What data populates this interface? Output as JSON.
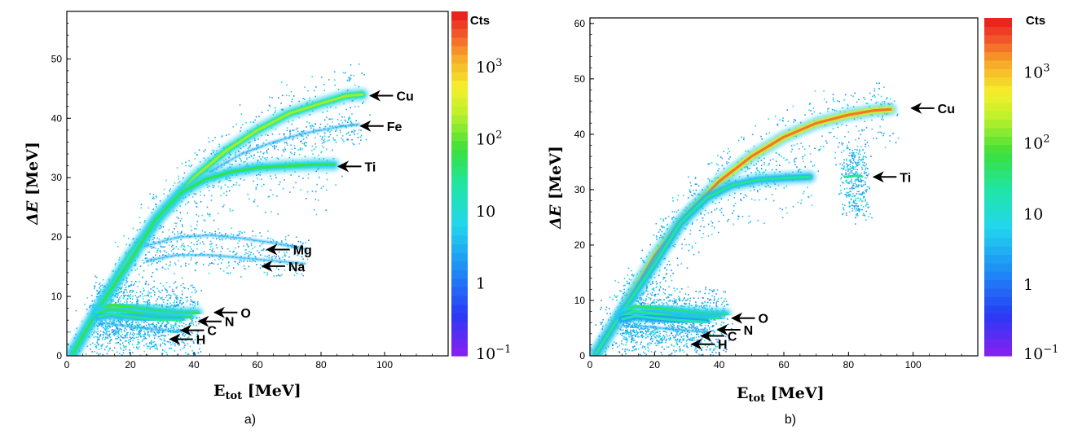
{
  "chart_data": [
    {
      "type": "heatmap",
      "panel_label": "a)",
      "xlabel_main": "E",
      "xlabel_sub": "tot",
      "xlabel_unit": " [MeV]",
      "ylabel_main": "ΔE",
      "ylabel_unit": " [MeV]",
      "xlim": [
        0,
        120
      ],
      "ylim": [
        0,
        58
      ],
      "xticks": [
        0,
        20,
        40,
        60,
        80,
        100
      ],
      "yticks": [
        0,
        10,
        20,
        30,
        40,
        50
      ],
      "colorbar": {
        "title": "Cts",
        "scale": "log",
        "range": [
          0.1,
          6000
        ],
        "ticks": [
          {
            "base": "10",
            "exp": "3",
            "value": 1000
          },
          {
            "base": "10",
            "exp": "2",
            "value": 100
          },
          {
            "base": "10",
            "exp": "",
            "value": 10
          },
          {
            "base": "1",
            "exp": "",
            "value": 1
          },
          {
            "base": "10",
            "exp": "−1",
            "value": 0.1
          }
        ]
      },
      "bands": [
        {
          "name": "Cu",
          "points": [
            [
              2,
              0.5
            ],
            [
              10,
              8
            ],
            [
              20,
              17
            ],
            [
              30,
              24
            ],
            [
              40,
              30
            ],
            [
              50,
              34.5
            ],
            [
              60,
              38
            ],
            [
              70,
              40.8
            ],
            [
              80,
              42.5
            ],
            [
              88,
              43.8
            ],
            [
              93,
              44
            ]
          ],
          "intensity": 0.62
        },
        {
          "name": "Ti",
          "points": [
            [
              2,
              0.5
            ],
            [
              10,
              8
            ],
            [
              20,
              16
            ],
            [
              28,
              23
            ],
            [
              36,
              27.5
            ],
            [
              44,
              29.8
            ],
            [
              52,
              31
            ],
            [
              60,
              31.7
            ],
            [
              70,
              32
            ],
            [
              78,
              32.2
            ],
            [
              84,
              32.2
            ]
          ],
          "intensity": 0.52
        },
        {
          "name": "Fe",
          "points": [
            [
              45,
              31
            ],
            [
              55,
              34
            ],
            [
              65,
              36
            ],
            [
              75,
              37.5
            ],
            [
              85,
              38.5
            ],
            [
              92,
              39
            ]
          ],
          "intensity": 0.15
        },
        {
          "name": "Mg",
          "points": [
            [
              25,
              18.5
            ],
            [
              35,
              20
            ],
            [
              45,
              20.3
            ],
            [
              55,
              19.8
            ],
            [
              65,
              19
            ],
            [
              75,
              18
            ]
          ],
          "intensity": 0.12
        },
        {
          "name": "Na",
          "points": [
            [
              25,
              16
            ],
            [
              35,
              17
            ],
            [
              45,
              17
            ],
            [
              55,
              16.5
            ],
            [
              65,
              16
            ],
            [
              75,
              15.5
            ]
          ],
          "intensity": 0.1
        },
        {
          "name": "O",
          "points": [
            [
              10,
              7.6
            ],
            [
              14,
              8.6
            ],
            [
              20,
              8.2
            ],
            [
              28,
              7.6
            ],
            [
              36,
              7.2
            ],
            [
              41,
              7.2
            ]
          ],
          "intensity": 0.55
        },
        {
          "name": "N",
          "points": [
            [
              10,
              7.2
            ],
            [
              14,
              7.9
            ],
            [
              20,
              7.4
            ],
            [
              28,
              6.8
            ],
            [
              35,
              6.5
            ],
            [
              39,
              6.5
            ]
          ],
          "intensity": 0.5
        },
        {
          "name": "C",
          "points": [
            [
              10,
              6.6
            ],
            [
              14,
              7
            ],
            [
              20,
              6.6
            ],
            [
              28,
              6.1
            ],
            [
              36,
              6
            ]
          ],
          "intensity": 0.45
        },
        {
          "name": "H",
          "points": [
            [
              10,
              5.5
            ],
            [
              15,
              5.3
            ],
            [
              22,
              4.8
            ],
            [
              30,
              4.3
            ],
            [
              38,
              4
            ]
          ],
          "intensity": 0.2
        }
      ],
      "annotations": [
        {
          "label": "Cu",
          "x": 95.5,
          "y": 43.8
        },
        {
          "label": "Fe",
          "x": 92.5,
          "y": 38.7
        },
        {
          "label": "Ti",
          "x": 85.5,
          "y": 31.9
        },
        {
          "label": "Mg",
          "x": 63,
          "y": 17.9
        },
        {
          "label": "Na",
          "x": 61.5,
          "y": 15.1
        },
        {
          "label": "O",
          "x": 46.5,
          "y": 7.3
        },
        {
          "label": "N",
          "x": 41.5,
          "y": 5.8
        },
        {
          "label": "C",
          "x": 36,
          "y": 4.3
        },
        {
          "label": "H",
          "x": 32.5,
          "y": 2.8
        }
      ]
    },
    {
      "type": "heatmap",
      "panel_label": "b)",
      "xlabel_main": "E",
      "xlabel_sub": "tot",
      "xlabel_unit": " [MeV]",
      "ylabel_main": "ΔE",
      "ylabel_unit": " [MeV]",
      "xlim": [
        0,
        120
      ],
      "ylim": [
        0,
        61
      ],
      "xticks": [
        0,
        20,
        40,
        60,
        80,
        100
      ],
      "yticks": [
        0,
        10,
        20,
        30,
        40,
        50,
        60
      ],
      "colorbar": {
        "title": "Cts",
        "scale": "log",
        "range": [
          0.1,
          6000
        ],
        "ticks": [
          {
            "base": "10",
            "exp": "3",
            "value": 1000
          },
          {
            "base": "10",
            "exp": "2",
            "value": 100
          },
          {
            "base": "10",
            "exp": "",
            "value": 10
          },
          {
            "base": "1",
            "exp": "",
            "value": 1
          },
          {
            "base": "10",
            "exp": "−1",
            "value": 0.1
          }
        ]
      },
      "bands": [
        {
          "name": "Cu",
          "points": [
            [
              2,
              0.5
            ],
            [
              10,
              8
            ],
            [
              20,
              18
            ],
            [
              30,
              25.5
            ],
            [
              40,
              31.5
            ],
            [
              50,
              36
            ],
            [
              60,
              39.5
            ],
            [
              70,
              42
            ],
            [
              80,
              43.5
            ],
            [
              88,
              44.3
            ],
            [
              93,
              44.5
            ]
          ],
          "intensity": 0.85
        },
        {
          "name": "Ti",
          "points": [
            [
              2,
              0.5
            ],
            [
              10,
              8
            ],
            [
              20,
              16.5
            ],
            [
              28,
              24
            ],
            [
              36,
              28.5
            ],
            [
              44,
              30.8
            ],
            [
              52,
              31.8
            ],
            [
              60,
              32.1
            ],
            [
              68,
              32.3
            ]
          ],
          "intensity": 0.45
        },
        {
          "name": "Ti-spot",
          "points": [
            [
              79,
              32.3
            ],
            [
              82,
              32.5
            ],
            [
              84,
              32.4
            ]
          ],
          "intensity": 0.45
        },
        {
          "name": "O",
          "points": [
            [
              10,
              7.6
            ],
            [
              14,
              9
            ],
            [
              20,
              8.6
            ],
            [
              28,
              8.1
            ],
            [
              36,
              7.6
            ],
            [
              42,
              7.5
            ]
          ],
          "intensity": 0.5
        },
        {
          "name": "N",
          "points": [
            [
              10,
              7.2
            ],
            [
              14,
              8.1
            ],
            [
              20,
              7.6
            ],
            [
              28,
              7
            ],
            [
              36,
              6.8
            ],
            [
              40,
              6.8
            ]
          ],
          "intensity": 0.45
        },
        {
          "name": "C",
          "points": [
            [
              10,
              6.6
            ],
            [
              14,
              7.2
            ],
            [
              20,
              6.8
            ],
            [
              28,
              6.4
            ],
            [
              36,
              6.1
            ]
          ],
          "intensity": 0.4
        },
        {
          "name": "H",
          "points": [
            [
              10,
              5.5
            ],
            [
              15,
              5.4
            ],
            [
              22,
              5
            ],
            [
              30,
              4.6
            ],
            [
              36,
              4.3
            ]
          ],
          "intensity": 0.2
        }
      ],
      "annotations": [
        {
          "label": "Cu",
          "x": 99.5,
          "y": 44.7
        },
        {
          "label": "Ti",
          "x": 87.8,
          "y": 32.3
        },
        {
          "label": "O",
          "x": 44,
          "y": 6.8
        },
        {
          "label": "N",
          "x": 39.5,
          "y": 4.7
        },
        {
          "label": "C",
          "x": 34.5,
          "y": 3.6
        },
        {
          "label": "H",
          "x": 31.5,
          "y": 2.1
        }
      ]
    }
  ]
}
